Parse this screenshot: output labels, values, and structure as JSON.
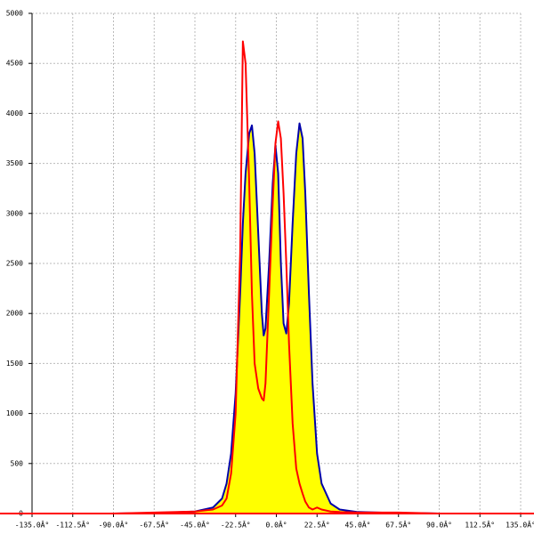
{
  "chart_data": {
    "type": "line",
    "x": [
      -135,
      -90,
      -67.5,
      -45,
      -35,
      -30,
      -27.5,
      -25,
      -22.5,
      -20,
      -18.5,
      -17,
      -15,
      -13.5,
      -12,
      -10,
      -8,
      -7,
      -6,
      -4,
      -2,
      -0.5,
      1,
      2.5,
      4,
      5.5,
      7,
      9,
      11,
      12.8,
      14.5,
      16,
      18,
      20,
      22.5,
      25,
      30,
      35,
      45,
      67.5,
      80,
      90,
      135
    ],
    "series": [
      {
        "color": "#0000aa",
        "fill": "#ffff00",
        "values": [
          0,
          0,
          5,
          20,
          60,
          150,
          300,
          600,
          1200,
          2200,
          2900,
          3400,
          3800,
          3880,
          3600,
          2800,
          2000,
          1780,
          1850,
          2500,
          3300,
          3680,
          3400,
          2500,
          1900,
          1800,
          2100,
          2900,
          3600,
          3900,
          3750,
          3200,
          2200,
          1300,
          600,
          300,
          100,
          40,
          15,
          5,
          3,
          0,
          0
        ]
      },
      {
        "color": "#ff0000",
        "values": [
          0,
          0,
          10,
          20,
          40,
          80,
          150,
          400,
          1000,
          2600,
          4720,
          4500,
          3300,
          2200,
          1500,
          1250,
          1150,
          1130,
          1300,
          2200,
          3100,
          3700,
          3920,
          3750,
          3200,
          2500,
          1700,
          900,
          450,
          300,
          200,
          120,
          60,
          40,
          60,
          40,
          20,
          15,
          10,
          10,
          5,
          0,
          0
        ]
      }
    ],
    "xlim": [
      -135,
      135
    ],
    "ylim": [
      0,
      5000
    ],
    "xticks": [
      {
        "value": -135,
        "label": "-135.0Â°"
      },
      {
        "value": -112.5,
        "label": "-112.5Â°"
      },
      {
        "value": -90,
        "label": "-90.0Â°"
      },
      {
        "value": -67.5,
        "label": "-67.5Â°"
      },
      {
        "value": -45,
        "label": "-45.0Â°"
      },
      {
        "value": -22.5,
        "label": "-22.5Â°"
      },
      {
        "value": 0,
        "label": "0.0Â°"
      },
      {
        "value": 22.5,
        "label": "22.5Â°"
      },
      {
        "value": 45,
        "label": "45.0Â°"
      },
      {
        "value": 67.5,
        "label": "67.5Â°"
      },
      {
        "value": 90,
        "label": "90.0Â°"
      },
      {
        "value": 112.5,
        "label": "112.5Â°"
      },
      {
        "value": 135,
        "label": "135.0Â°"
      }
    ],
    "yticks": [
      0,
      500,
      1000,
      1500,
      2000,
      2500,
      3000,
      3500,
      4000,
      4500,
      5000
    ],
    "grid": true
  }
}
